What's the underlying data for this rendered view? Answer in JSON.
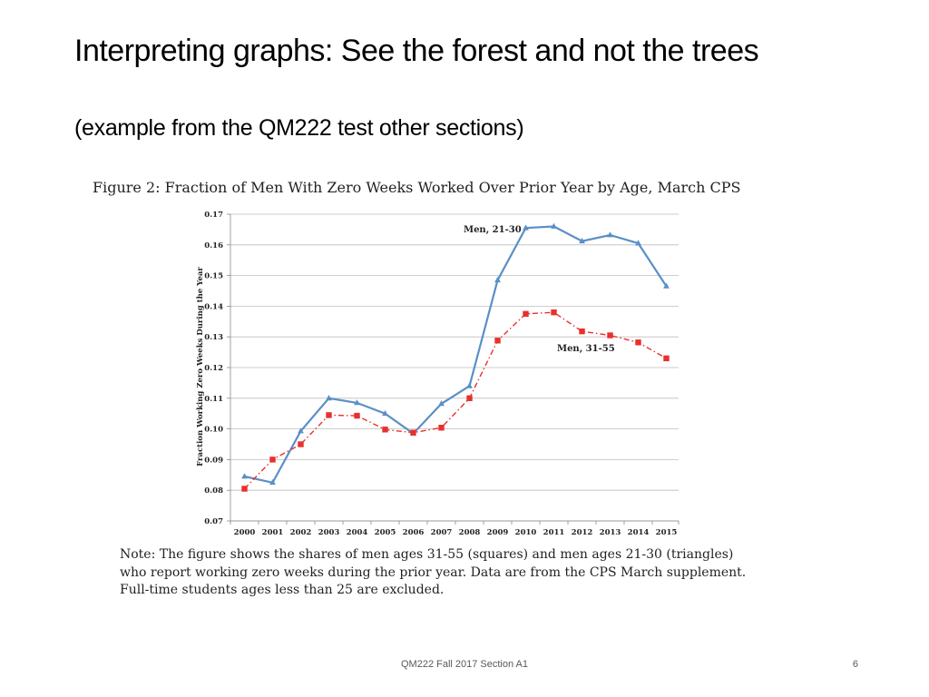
{
  "slide": {
    "title": "Interpreting graphs: See the forest and not the trees",
    "subtitle": "(example from the QM222 test other sections)",
    "footer": "QM222 Fall 2017 Section A1",
    "page_number": "6"
  },
  "figure": {
    "caption": "Figure 2: Fraction of Men With Zero Weeks Worked Over Prior Year by Age, March CPS",
    "note_lines": [
      "Note:  The figure shows the shares of men ages 31-55 (squares) and men ages 21-30 (triangles)",
      "who report working zero weeks during the prior year. Data are from the CPS March supplement.",
      "Full-time students ages less than 25 are excluded."
    ]
  },
  "chart_data": {
    "type": "line",
    "x": [
      "2000",
      "2001",
      "2002",
      "2003",
      "2004",
      "2005",
      "2006",
      "2007",
      "2008",
      "2009",
      "2010",
      "2011",
      "2012",
      "2013",
      "2014",
      "2015"
    ],
    "ylabel": "Fraction Working Zero Weeks During the Year",
    "xlabel": "",
    "ylim": [
      0.07,
      0.17
    ],
    "yticks": [
      "0.07",
      "0.08",
      "0.09",
      "0.10",
      "0.11",
      "0.12",
      "0.13",
      "0.14",
      "0.15",
      "0.16",
      "0.17"
    ],
    "grid": "horizontal",
    "series": [
      {
        "name": "Men, 21-30",
        "marker": "triangle",
        "line_style": "solid",
        "color": "#5b8fc7",
        "values": [
          0.0845,
          0.0825,
          0.0993,
          0.11,
          0.1085,
          0.105,
          0.0985,
          0.1082,
          0.114,
          0.1485,
          0.1655,
          0.166,
          0.1612,
          0.1632,
          0.1605,
          0.1465
        ]
      },
      {
        "name": "Men, 31-55",
        "marker": "square",
        "line_style": "dash-dot",
        "color": "#e8302e",
        "values": [
          0.0805,
          0.09,
          0.095,
          0.1045,
          0.1043,
          0.0998,
          0.0988,
          0.1004,
          0.11,
          0.1288,
          0.1375,
          0.138,
          0.1318,
          0.1305,
          0.1282,
          0.123
        ]
      }
    ]
  }
}
